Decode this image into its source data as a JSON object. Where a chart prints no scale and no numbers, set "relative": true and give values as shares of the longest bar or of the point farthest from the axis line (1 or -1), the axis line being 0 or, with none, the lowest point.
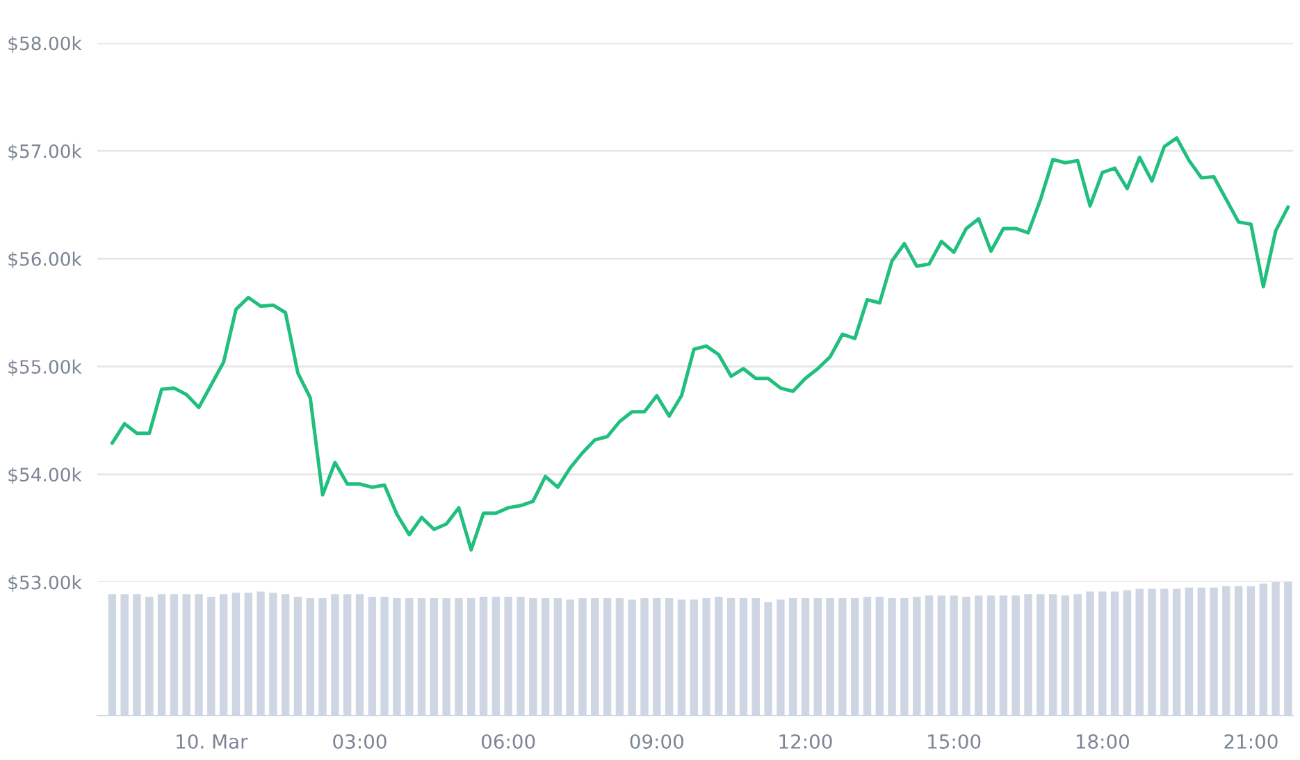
{
  "chart_data": [
    {
      "type": "line",
      "tick_labels": "y",
      "grid": "y",
      "marker": "none",
      "line_style": "solid",
      "x": [
        -2.0,
        -1.75,
        -1.5,
        -1.25,
        -1.0,
        -0.75,
        -0.5,
        -0.25,
        0.0,
        0.25,
        0.5,
        0.75,
        1.0,
        1.25,
        1.5,
        1.75,
        2.0,
        2.25,
        2.5,
        2.75,
        3.0,
        3.25,
        3.5,
        3.75,
        4.0,
        4.25,
        4.5,
        4.75,
        5.0,
        5.25,
        5.5,
        5.75,
        6.0,
        6.25,
        6.5,
        6.75,
        7.0,
        7.25,
        7.5,
        7.75,
        8.0,
        8.25,
        8.5,
        8.75,
        9.0,
        9.25,
        9.5,
        9.75,
        10.0,
        10.25,
        10.5,
        10.75,
        11.0,
        11.25,
        11.5,
        11.75,
        12.0,
        12.25,
        12.5,
        12.75,
        13.0,
        13.25,
        13.5,
        13.75,
        14.0,
        14.25,
        14.5,
        14.75,
        15.0,
        15.25,
        15.5,
        15.75,
        16.0,
        16.25,
        16.5,
        16.75,
        17.0,
        17.25,
        17.5,
        17.75,
        18.0,
        18.25,
        18.5,
        18.75,
        19.0,
        19.25,
        19.5,
        19.75,
        20.0,
        20.25,
        20.5,
        20.75,
        21.0,
        21.25,
        21.5,
        21.75
      ],
      "series": [
        {
          "color": "#20bf7e",
          "values": [
            54290,
            54470,
            54380,
            54380,
            54790,
            54800,
            54740,
            54620,
            54830,
            55040,
            55530,
            55640,
            55560,
            55570,
            55500,
            54940,
            54710,
            53810,
            54110,
            53910,
            53910,
            53880,
            53900,
            53630,
            53440,
            53600,
            53490,
            53540,
            53690,
            53300,
            53640,
            53640,
            53690,
            53710,
            53750,
            53980,
            53880,
            54060,
            54200,
            54320,
            54350,
            54490,
            54580,
            54580,
            54730,
            54540,
            54730,
            55160,
            55190,
            55110,
            54910,
            54980,
            54890,
            54890,
            54800,
            54770,
            54890,
            54980,
            55090,
            55300,
            55260,
            55620,
            55590,
            55980,
            56140,
            55930,
            55950,
            56160,
            56060,
            56280,
            56370,
            56070,
            56280,
            56280,
            56240,
            56550,
            56920,
            56890,
            56910,
            56490,
            56800,
            56840,
            56650,
            56940,
            56720,
            57040,
            57120,
            56910,
            56750,
            56760,
            56550,
            56340,
            56320,
            55740,
            56260,
            56480
          ]
        }
      ],
      "xlim": [
        -2.3,
        21.85
      ],
      "ylim": [
        53000,
        58000
      ],
      "yticks": [
        {
          "value": 53000,
          "label": "$53.00k"
        },
        {
          "value": 54000,
          "label": "$54.00k"
        },
        {
          "value": 55000,
          "label": "$55.00k"
        },
        {
          "value": 56000,
          "label": "$56.00k"
        },
        {
          "value": 57000,
          "label": "$57.00k"
        },
        {
          "value": 58000,
          "label": "$58.00k"
        }
      ]
    },
    {
      "type": "bar",
      "relative": true,
      "tick_labels": "x",
      "x": [
        -2.0,
        -1.75,
        -1.5,
        -1.25,
        -1.0,
        -0.75,
        -0.5,
        -0.25,
        0.0,
        0.25,
        0.5,
        0.75,
        1.0,
        1.25,
        1.5,
        1.75,
        2.0,
        2.25,
        2.5,
        2.75,
        3.0,
        3.25,
        3.5,
        3.75,
        4.0,
        4.25,
        4.5,
        4.75,
        5.0,
        5.25,
        5.5,
        5.75,
        6.0,
        6.25,
        6.5,
        6.75,
        7.0,
        7.25,
        7.5,
        7.75,
        8.0,
        8.25,
        8.5,
        8.75,
        9.0,
        9.25,
        9.5,
        9.75,
        10.0,
        10.25,
        10.5,
        10.75,
        11.0,
        11.25,
        11.5,
        11.75,
        12.0,
        12.25,
        12.5,
        12.75,
        13.0,
        13.25,
        13.5,
        13.75,
        14.0,
        14.25,
        14.5,
        14.75,
        15.0,
        15.25,
        15.5,
        15.75,
        16.0,
        16.25,
        16.5,
        16.75,
        17.0,
        17.25,
        17.5,
        17.75,
        18.0,
        18.25,
        18.5,
        18.75,
        19.0,
        19.25,
        19.5,
        19.75,
        20.0,
        20.25,
        20.5,
        20.75,
        21.0,
        21.25,
        21.5,
        21.75
      ],
      "series": [
        {
          "color": "#cfd6e3",
          "values": [
            0.91,
            0.91,
            0.91,
            0.89,
            0.91,
            0.91,
            0.91,
            0.91,
            0.89,
            0.91,
            0.92,
            0.92,
            0.93,
            0.92,
            0.91,
            0.89,
            0.88,
            0.88,
            0.91,
            0.91,
            0.91,
            0.89,
            0.89,
            0.88,
            0.88,
            0.88,
            0.88,
            0.88,
            0.88,
            0.88,
            0.89,
            0.89,
            0.89,
            0.89,
            0.88,
            0.88,
            0.88,
            0.87,
            0.88,
            0.88,
            0.88,
            0.88,
            0.87,
            0.88,
            0.88,
            0.88,
            0.87,
            0.87,
            0.88,
            0.89,
            0.88,
            0.88,
            0.88,
            0.85,
            0.87,
            0.88,
            0.88,
            0.88,
            0.88,
            0.88,
            0.88,
            0.89,
            0.89,
            0.88,
            0.88,
            0.89,
            0.9,
            0.9,
            0.9,
            0.89,
            0.9,
            0.9,
            0.9,
            0.9,
            0.91,
            0.91,
            0.91,
            0.9,
            0.91,
            0.93,
            0.93,
            0.93,
            0.94,
            0.95,
            0.95,
            0.95,
            0.95,
            0.96,
            0.96,
            0.96,
            0.97,
            0.97,
            0.97,
            0.99,
            1,
            1
          ]
        }
      ],
      "xlim": [
        -2.3,
        21.85
      ],
      "xticks": [
        {
          "value": 0,
          "label": "10. Mar"
        },
        {
          "value": 3,
          "label": "03:00"
        },
        {
          "value": 6,
          "label": "06:00"
        },
        {
          "value": 9,
          "label": "09:00"
        },
        {
          "value": 12,
          "label": "12:00"
        },
        {
          "value": 15,
          "label": "15:00"
        },
        {
          "value": 18,
          "label": "18:00"
        },
        {
          "value": 21,
          "label": "21:00"
        }
      ]
    }
  ]
}
